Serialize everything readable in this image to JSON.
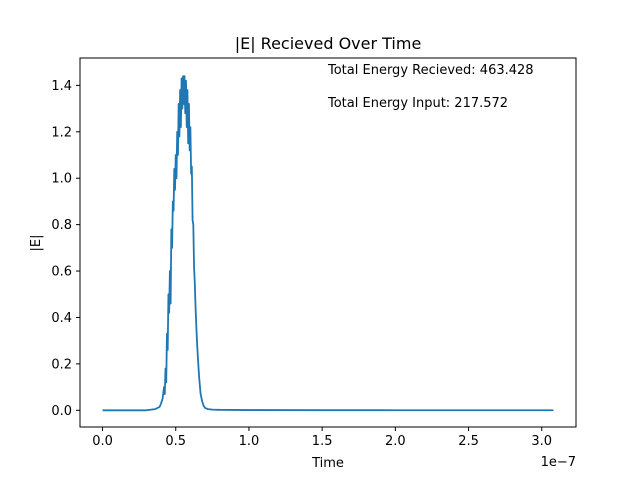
{
  "chart_data": {
    "type": "line",
    "title": "|E| Recieved Over Time",
    "xlabel": "Time",
    "ylabel": "|E|",
    "x_offset_label": "1e−7",
    "xlim": [
      -0.154,
      3.234
    ],
    "ylim": [
      -0.072,
      1.518
    ],
    "x_ticks": [
      0.0,
      0.5,
      1.0,
      1.5,
      2.0,
      2.5,
      3.0
    ],
    "x_tick_labels": [
      "0.0",
      "0.5",
      "1.0",
      "1.5",
      "2.0",
      "2.5",
      "3.0"
    ],
    "y_ticks": [
      0.0,
      0.2,
      0.4,
      0.6,
      0.8,
      1.0,
      1.2,
      1.4
    ],
    "y_tick_labels": [
      "0.0",
      "0.2",
      "0.4",
      "0.6",
      "0.8",
      "1.0",
      "1.2",
      "1.4"
    ],
    "grid": false,
    "annotations": [
      "Total Energy Recieved: 463.428",
      "Total Energy Input: 217.572"
    ],
    "series": [
      {
        "color": "#1f77b4",
        "x": [
          0.0,
          0.3,
          0.36,
          0.39,
          0.4,
          0.41,
          0.42,
          0.425,
          0.43,
          0.435,
          0.44,
          0.445,
          0.45,
          0.455,
          0.46,
          0.465,
          0.47,
          0.475,
          0.48,
          0.485,
          0.49,
          0.495,
          0.5,
          0.505,
          0.51,
          0.515,
          0.52,
          0.525,
          0.53,
          0.535,
          0.54,
          0.545,
          0.55,
          0.555,
          0.56,
          0.565,
          0.57,
          0.575,
          0.58,
          0.585,
          0.59,
          0.595,
          0.6,
          0.605,
          0.61,
          0.615,
          0.62,
          0.625,
          0.63,
          0.635,
          0.64,
          0.645,
          0.65,
          0.66,
          0.67,
          0.68,
          0.69,
          0.7,
          0.72,
          0.75,
          0.8,
          1.0,
          1.5,
          2.0,
          2.5,
          3.08
        ],
        "y": [
          0.0,
          0.0,
          0.005,
          0.015,
          0.03,
          0.05,
          0.1,
          0.07,
          0.18,
          0.12,
          0.33,
          0.26,
          0.5,
          0.42,
          0.6,
          0.46,
          0.78,
          0.7,
          0.9,
          0.86,
          1.04,
          0.95,
          1.1,
          1.0,
          1.2,
          1.1,
          1.32,
          1.18,
          1.38,
          1.22,
          1.43,
          1.3,
          1.44,
          1.32,
          1.44,
          1.28,
          1.42,
          1.22,
          1.38,
          1.15,
          1.32,
          1.12,
          1.22,
          1.02,
          1.05,
          0.82,
          0.8,
          0.62,
          0.55,
          0.45,
          0.37,
          0.3,
          0.24,
          0.14,
          0.07,
          0.04,
          0.02,
          0.01,
          0.005,
          0.003,
          0.002,
          0.001,
          0.0005,
          0.0003,
          0.0002,
          0.0001
        ]
      }
    ]
  }
}
